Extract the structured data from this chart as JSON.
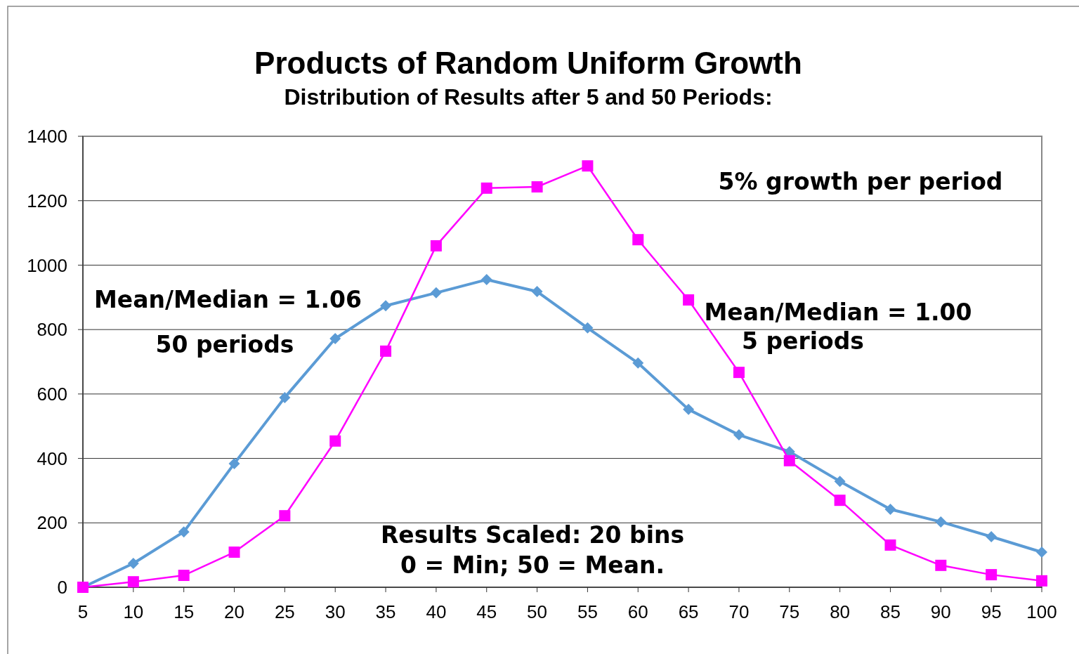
{
  "chart_data": {
    "type": "line",
    "title": "Products of Random Uniform Growth",
    "subtitle": "Distribution of Results after 5 and 50 Periods:",
    "categories": [
      "5",
      "10",
      "15",
      "20",
      "25",
      "30",
      "35",
      "40",
      "45",
      "50",
      "55",
      "60",
      "65",
      "70",
      "75",
      "80",
      "85",
      "90",
      "95",
      "100"
    ],
    "ylim": [
      0,
      1400
    ],
    "yticks": [
      0,
      200,
      400,
      600,
      800,
      1000,
      1200,
      1400
    ],
    "grid": "y",
    "series": [
      {
        "color": "#5b9bd5",
        "marker": "diamond",
        "values": [
          0,
          74,
          172,
          384,
          589,
          772,
          874,
          914,
          955,
          918,
          805,
          696,
          552,
          473,
          421,
          329,
          242,
          203,
          157,
          109
        ]
      },
      {
        "color": "#ff00ff",
        "marker": "square",
        "values": [
          0,
          17,
          37,
          109,
          222,
          454,
          733,
          1060,
          1239,
          1243,
          1308,
          1079,
          892,
          667,
          393,
          270,
          131,
          68,
          39,
          20
        ]
      }
    ],
    "annotations": [
      "5% growth per period",
      "Mean/Median = 1.06",
      "50 periods",
      "Mean/Median = 1.00",
      "5 periods",
      "Results Scaled: 20 bins",
      "0 = Min; 50 = Mean."
    ]
  }
}
